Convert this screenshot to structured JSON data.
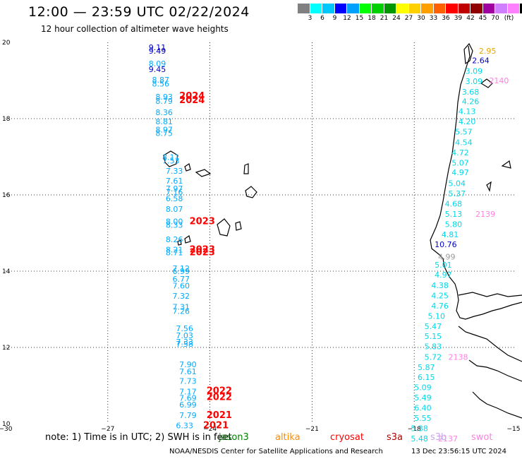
{
  "header": {
    "title": "12:00 — 23:59 UTC 02/22/2024",
    "subtitle": "12 hour collection of altimeter wave heights"
  },
  "legend": {
    "colors": [
      "#808080",
      "#00ffff",
      "#00c8ff",
      "#0000ff",
      "#00a0ff",
      "#00ff00",
      "#00d000",
      "#009600",
      "#ffff00",
      "#ffd000",
      "#ffa000",
      "#ff6000",
      "#ff0000",
      "#c00000",
      "#900000",
      "#a000a0",
      "#d080ff",
      "#ff80ff",
      "#000000"
    ],
    "labels": [
      "3",
      "6",
      "9",
      "12",
      "15",
      "18",
      "21",
      "24",
      "27",
      "30",
      "33",
      "36",
      "39",
      "42",
      "45",
      "70",
      "(ft)"
    ]
  },
  "axes": {
    "x_ticks": [
      "−30",
      "−27",
      "−24",
      "−21",
      "−18",
      "−15"
    ],
    "y_ticks": [
      "20",
      "18",
      "16",
      "14",
      "12",
      "10"
    ]
  },
  "chart_data": {
    "type": "scatter",
    "xlim": [
      -30,
      -15
    ],
    "ylim": [
      10,
      20
    ],
    "gridlines": true,
    "labels": [
      {
        "x": -25.8,
        "y": 19.8,
        "t": "9.11",
        "c": "#0000cc"
      },
      {
        "x": -25.8,
        "y": 19.7,
        "t": "9.49",
        "c": "#0000cc"
      },
      {
        "x": -25.8,
        "y": 19.37,
        "t": "8.09",
        "c": "#00aaff"
      },
      {
        "x": -25.8,
        "y": 19.22,
        "t": "9.45",
        "c": "#0000cc"
      },
      {
        "x": -25.7,
        "y": 18.94,
        "t": "8.87",
        "c": "#00aaff"
      },
      {
        "x": -25.7,
        "y": 18.84,
        "t": "8.56",
        "c": "#00aaff"
      },
      {
        "x": -25.6,
        "y": 18.5,
        "t": "8.93",
        "c": "#00aaff"
      },
      {
        "x": -25.6,
        "y": 18.39,
        "t": "8.79",
        "c": "#00aaff"
      },
      {
        "x": -24.9,
        "y": 18.52,
        "t": "2024",
        "c": "#ff0000",
        "b": true
      },
      {
        "x": -24.9,
        "y": 18.41,
        "t": "2024",
        "c": "#ff0000",
        "b": true
      },
      {
        "x": -25.6,
        "y": 18.09,
        "t": "8.36",
        "c": "#00aaff"
      },
      {
        "x": -25.6,
        "y": 17.85,
        "t": "8.81",
        "c": "#00aaff"
      },
      {
        "x": -25.6,
        "y": 17.64,
        "t": "8.97",
        "c": "#00aaff"
      },
      {
        "x": -25.6,
        "y": 17.55,
        "t": "8.75",
        "c": "#00aaff"
      },
      {
        "x": -25.4,
        "y": 16.92,
        "t": "8.11",
        "c": "#00aaff"
      },
      {
        "x": -25.4,
        "y": 16.82,
        "t": "7.53",
        "c": "#00aaff"
      },
      {
        "x": -25.3,
        "y": 16.56,
        "t": "7.33",
        "c": "#00aaff"
      },
      {
        "x": -25.3,
        "y": 16.3,
        "t": "7.61",
        "c": "#00aaff"
      },
      {
        "x": -25.3,
        "y": 16.09,
        "t": "7.97",
        "c": "#00aaff"
      },
      {
        "x": -25.3,
        "y": 16.0,
        "t": "7.16",
        "c": "#00aaff"
      },
      {
        "x": -25.3,
        "y": 15.83,
        "t": "6.58",
        "c": "#00aaff"
      },
      {
        "x": -25.3,
        "y": 15.56,
        "t": "8.07",
        "c": "#00aaff"
      },
      {
        "x": -25.3,
        "y": 15.23,
        "t": "8.00",
        "c": "#00aaff"
      },
      {
        "x": -25.3,
        "y": 15.14,
        "t": "8.33",
        "c": "#00aaff"
      },
      {
        "x": -24.6,
        "y": 15.23,
        "t": "2023",
        "c": "#ff0000",
        "b": true
      },
      {
        "x": -25.3,
        "y": 14.76,
        "t": "8.26",
        "c": "#00aaff"
      },
      {
        "x": -25.3,
        "y": 14.49,
        "t": "8.21",
        "c": "#00aaff"
      },
      {
        "x": -25.3,
        "y": 14.42,
        "t": "8.71",
        "c": "#00aaff"
      },
      {
        "x": -24.6,
        "y": 14.49,
        "t": "2023",
        "c": "#ff0000",
        "b": true
      },
      {
        "x": -24.6,
        "y": 14.42,
        "t": "2023",
        "c": "#ff0000",
        "b": true
      },
      {
        "x": -25.1,
        "y": 14.0,
        "t": "7.12",
        "c": "#00aaff"
      },
      {
        "x": -25.1,
        "y": 13.93,
        "t": "6.99",
        "c": "#00aaff"
      },
      {
        "x": -25.1,
        "y": 13.72,
        "t": "6.77",
        "c": "#00aaff"
      },
      {
        "x": -25.1,
        "y": 13.55,
        "t": "7.60",
        "c": "#00aaff"
      },
      {
        "x": -25.1,
        "y": 13.28,
        "t": "7.32",
        "c": "#00aaff"
      },
      {
        "x": -25.1,
        "y": 12.99,
        "t": "7.31",
        "c": "#00aaff"
      },
      {
        "x": -25.1,
        "y": 12.88,
        "t": "7.26",
        "c": "#00aaff"
      },
      {
        "x": -25.0,
        "y": 12.43,
        "t": "7.56",
        "c": "#00aaff"
      },
      {
        "x": -25.0,
        "y": 12.24,
        "t": "7.03",
        "c": "#00aaff"
      },
      {
        "x": -25.0,
        "y": 12.07,
        "t": "7.33",
        "c": "#00aaff"
      },
      {
        "x": -25.0,
        "y": 12.02,
        "t": "7.58",
        "c": "#00aaff"
      },
      {
        "x": -24.9,
        "y": 11.48,
        "t": "7.90",
        "c": "#00aaff"
      },
      {
        "x": -24.9,
        "y": 11.3,
        "t": "7.61",
        "c": "#00aaff"
      },
      {
        "x": -24.9,
        "y": 11.05,
        "t": "7.73",
        "c": "#00aaff"
      },
      {
        "x": -24.9,
        "y": 10.77,
        "t": "7.17",
        "c": "#00aaff"
      },
      {
        "x": -24.1,
        "y": 10.79,
        "t": "2022",
        "c": "#ff0000",
        "b": true
      },
      {
        "x": -24.9,
        "y": 10.6,
        "t": "7.69",
        "c": "#00aaff"
      },
      {
        "x": -24.1,
        "y": 10.62,
        "t": "2022",
        "c": "#ff0000",
        "b": true
      },
      {
        "x": -24.9,
        "y": 10.43,
        "t": "6.99",
        "c": "#00aaff"
      },
      {
        "x": -24.9,
        "y": 10.15,
        "t": "7.79",
        "c": "#00aaff"
      },
      {
        "x": -24.1,
        "y": 10.15,
        "t": "2021",
        "c": "#ff0000",
        "b": true
      },
      {
        "x": -25.0,
        "y": 9.88,
        "t": "6.33",
        "c": "#00aaff"
      },
      {
        "x": -24.2,
        "y": 9.88,
        "t": "2021",
        "c": "#ff0000",
        "b": true
      },
      {
        "x": -16.1,
        "y": 19.7,
        "t": "2.95",
        "c": "#e8a800"
      },
      {
        "x": -16.3,
        "y": 19.45,
        "t": "2.64",
        "c": "#0000cc"
      },
      {
        "x": -16.5,
        "y": 19.18,
        "t": "3.09",
        "c": "#00d8e8"
      },
      {
        "x": -15.8,
        "y": 18.93,
        "t": "2140",
        "c": "#ff80e0"
      },
      {
        "x": -16.5,
        "y": 18.91,
        "t": "3.09",
        "c": "#00d8e8"
      },
      {
        "x": -16.6,
        "y": 18.63,
        "t": "3.68",
        "c": "#00d8e8"
      },
      {
        "x": -16.6,
        "y": 18.38,
        "t": "4.26",
        "c": "#00d8e8"
      },
      {
        "x": -16.7,
        "y": 18.12,
        "t": "4.13",
        "c": "#00d8e8"
      },
      {
        "x": -16.7,
        "y": 17.85,
        "t": "4.20",
        "c": "#00d8e8"
      },
      {
        "x": -16.8,
        "y": 17.58,
        "t": "5.57",
        "c": "#00d8e8"
      },
      {
        "x": -16.8,
        "y": 17.31,
        "t": "4.54",
        "c": "#00d8e8"
      },
      {
        "x": -16.9,
        "y": 17.04,
        "t": "4.72",
        "c": "#00d8e8"
      },
      {
        "x": -16.9,
        "y": 16.77,
        "t": "5.07",
        "c": "#00d8e8"
      },
      {
        "x": -16.9,
        "y": 16.52,
        "t": "4.97",
        "c": "#00d8e8"
      },
      {
        "x": -17.0,
        "y": 16.23,
        "t": "5.04",
        "c": "#00d8e8"
      },
      {
        "x": -17.0,
        "y": 15.96,
        "t": "5.37",
        "c": "#00d8e8"
      },
      {
        "x": -17.1,
        "y": 15.69,
        "t": "4.68",
        "c": "#00d8e8"
      },
      {
        "x": -17.1,
        "y": 15.43,
        "t": "5.13",
        "c": "#00d8e8"
      },
      {
        "x": -16.2,
        "y": 15.43,
        "t": "2139",
        "c": "#ff80e0"
      },
      {
        "x": -17.1,
        "y": 15.16,
        "t": "5.80",
        "c": "#00d8e8"
      },
      {
        "x": -17.2,
        "y": 14.89,
        "t": "4.81",
        "c": "#00d8e8"
      },
      {
        "x": -17.4,
        "y": 14.63,
        "t": "10.76",
        "c": "#0000cc"
      },
      {
        "x": -17.3,
        "y": 14.31,
        "t": "4.99",
        "c": "#9a9a9a"
      },
      {
        "x": -17.4,
        "y": 14.09,
        "t": "5.01",
        "c": "#00d8e8"
      },
      {
        "x": -17.4,
        "y": 13.83,
        "t": "4.97",
        "c": "#00d8e8"
      },
      {
        "x": -17.5,
        "y": 13.56,
        "t": "4.38",
        "c": "#00d8e8"
      },
      {
        "x": -17.5,
        "y": 13.29,
        "t": "4.25",
        "c": "#00d8e8"
      },
      {
        "x": -17.5,
        "y": 13.02,
        "t": "4.76",
        "c": "#00d8e8"
      },
      {
        "x": -17.6,
        "y": 12.75,
        "t": "5.10",
        "c": "#00d8e8"
      },
      {
        "x": -17.7,
        "y": 12.48,
        "t": "5.47",
        "c": "#00d8e8"
      },
      {
        "x": -17.7,
        "y": 12.22,
        "t": "5.15",
        "c": "#00d8e8"
      },
      {
        "x": -17.7,
        "y": 11.95,
        "t": "5.83",
        "c": "#00d8e8"
      },
      {
        "x": -17.7,
        "y": 11.68,
        "t": "5.72",
        "c": "#00d8e8"
      },
      {
        "x": -17.0,
        "y": 11.68,
        "t": "2138",
        "c": "#ff80e0"
      },
      {
        "x": -17.9,
        "y": 11.41,
        "t": "5.87",
        "c": "#00d8e8"
      },
      {
        "x": -17.9,
        "y": 11.15,
        "t": "6.15",
        "c": "#00d8e8"
      },
      {
        "x": -18.0,
        "y": 10.88,
        "t": "5.09",
        "c": "#00d8e8"
      },
      {
        "x": -18.0,
        "y": 10.61,
        "t": "5.49",
        "c": "#00d8e8"
      },
      {
        "x": -18.0,
        "y": 10.34,
        "t": "6.40",
        "c": "#00d8e8"
      },
      {
        "x": -18.0,
        "y": 10.07,
        "t": "5.55",
        "c": "#00d8e8"
      },
      {
        "x": -18.1,
        "y": 9.81,
        "t": "5.38",
        "c": "#00d8e8"
      },
      {
        "x": -18.1,
        "y": 9.54,
        "t": "5.48",
        "c": "#00d8e8"
      },
      {
        "x": -17.3,
        "y": 9.54,
        "t": "2137",
        "c": "#ff80e0"
      }
    ]
  },
  "footer": {
    "note": "note: 1) Time is in UTC; 2) SWH is in feet",
    "satellites": [
      {
        "name": "jason3",
        "color": "#008000"
      },
      {
        "name": "altika",
        "color": "#ff8c00"
      },
      {
        "name": "cryosat",
        "color": "#ff0000"
      },
      {
        "name": "s3a",
        "color": "#b00000"
      },
      {
        "name": "s3b",
        "color": "#c8a8f0"
      },
      {
        "name": "swot",
        "color": "#ff80e0"
      }
    ],
    "credit": "NOAA/NESDIS Center for Satellite Applications and Research",
    "timestamp": "13 Dec 23:56:15 UTC 2024"
  }
}
